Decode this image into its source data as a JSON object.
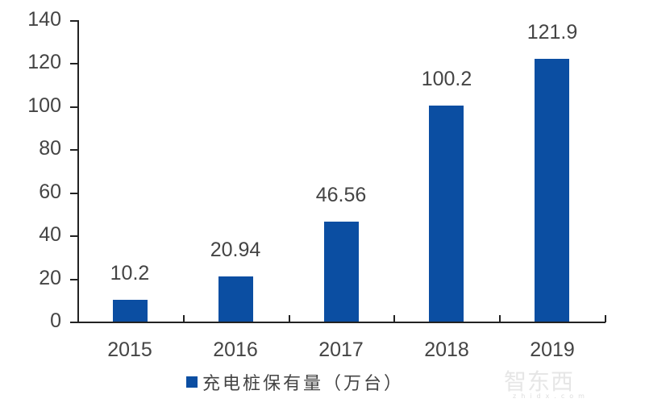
{
  "chart_data": {
    "type": "bar",
    "title": "",
    "categories": [
      "2015",
      "2016",
      "2017",
      "2018",
      "2019"
    ],
    "series": [
      {
        "name": "充电桩保有量（万台）",
        "values": [
          10.2,
          20.94,
          46.56,
          100.2,
          121.9
        ],
        "color": "#0b4ea2"
      }
    ],
    "value_labels": [
      "10.2",
      "20.94",
      "46.56",
      "100.2",
      "121.9"
    ],
    "xlabel": "",
    "ylabel": "",
    "ylim": [
      0,
      140
    ],
    "yticks": [
      0,
      20,
      40,
      60,
      80,
      100,
      120,
      140
    ],
    "grid": false,
    "legend_position": "bottom"
  },
  "legend": {
    "label": "充电桩保有量（万台）",
    "color": "#0b4ea2"
  },
  "watermark": {
    "text": "智东西",
    "subtext": "zhidx.com"
  }
}
